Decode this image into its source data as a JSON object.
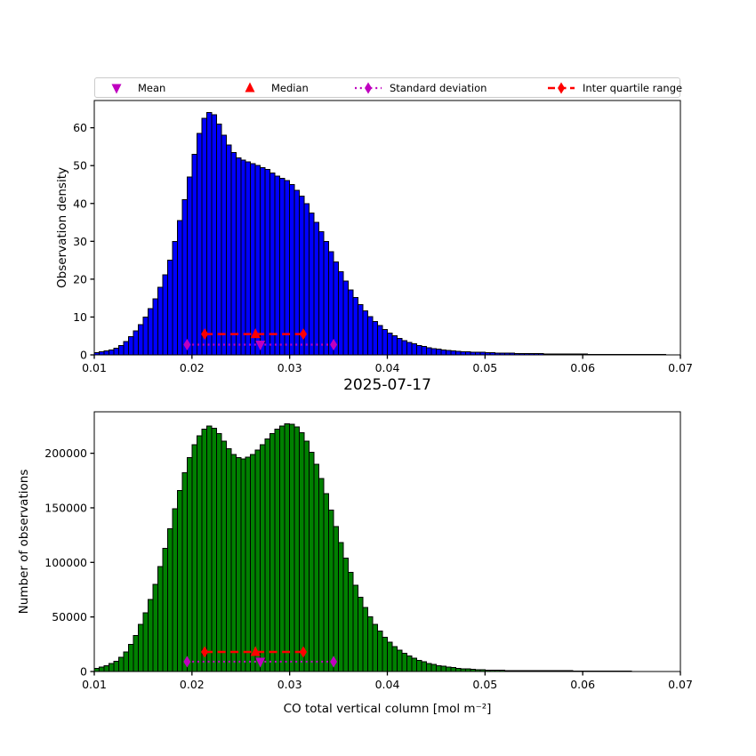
{
  "figure": {
    "background": "#ffffff"
  },
  "legend": {
    "items": [
      {
        "label": "Mean",
        "marker": "triangle-down",
        "color": "#BF00BF",
        "linestyle": "none"
      },
      {
        "label": "Median",
        "marker": "triangle-up",
        "color": "#FF0000",
        "linestyle": "none"
      },
      {
        "label": "Standard deviation",
        "marker": "diamond",
        "color": "#BF00BF",
        "linestyle": "dotted"
      },
      {
        "label": "Inter quartile range",
        "marker": "diamond",
        "color": "#FF0000",
        "linestyle": "dashed"
      }
    ]
  },
  "chart_data": [
    {
      "type": "bar",
      "subtype": "histogram",
      "title": "",
      "xlabel": "",
      "ylabel": "Observation density",
      "xlim": [
        0.01,
        0.07
      ],
      "ylim": [
        0,
        67.2
      ],
      "grid": false,
      "xticks": [
        0.01,
        0.02,
        0.03,
        0.04,
        0.05,
        0.06,
        0.07
      ],
      "xtick_labels": [
        "0.01",
        "0.02",
        "0.03",
        "0.04",
        "0.05",
        "0.06",
        "0.07"
      ],
      "yticks": [
        0,
        10,
        20,
        30,
        40,
        50,
        60
      ],
      "ytick_labels": [
        "0",
        "10",
        "20",
        "30",
        "40",
        "50",
        "60"
      ],
      "bar_color": "#0000FF",
      "edge_color": "#000000",
      "bin_start": 0.01,
      "bin_width": 0.0005,
      "values": [
        0.6,
        0.8,
        1.0,
        1.3,
        1.8,
        2.5,
        3.5,
        4.8,
        6.3,
        8.0,
        10.0,
        12.2,
        14.8,
        17.8,
        21.2,
        25.0,
        30.0,
        35.5,
        41.0,
        47.0,
        53.0,
        58.5,
        62.5,
        64.0,
        63.5,
        61.0,
        58.0,
        55.5,
        53.5,
        52.0,
        51.5,
        51.0,
        50.5,
        50.0,
        49.5,
        49.0,
        48.0,
        47.2,
        46.6,
        46.0,
        45.0,
        43.5,
        42.0,
        40.0,
        37.5,
        35.0,
        32.5,
        30.0,
        27.2,
        24.5,
        22.0,
        19.5,
        17.2,
        15.2,
        13.3,
        11.6,
        10.1,
        8.8,
        7.7,
        6.7,
        5.8,
        5.0,
        4.4,
        3.8,
        3.3,
        2.9,
        2.5,
        2.2,
        1.9,
        1.7,
        1.5,
        1.3,
        1.2,
        1.0,
        0.9,
        0.85,
        0.8,
        0.75,
        0.7,
        0.65,
        0.6,
        0.55,
        0.5,
        0.48,
        0.45,
        0.42,
        0.4,
        0.38,
        0.36,
        0.34,
        0.32,
        0.3,
        0.28,
        0.27,
        0.26,
        0.25,
        0.24,
        0.22,
        0.2,
        0.19,
        0.18,
        0.17,
        0.16,
        0.15,
        0.15,
        0.14,
        0.14,
        0.13,
        0.13,
        0.12,
        0.12,
        0.11,
        0.11,
        0.1,
        0.1,
        0.1,
        0.1
      ],
      "stats_markers": {
        "mean": {
          "x": 0.027,
          "y": 2.7,
          "color": "#BF00BF"
        },
        "median": {
          "x": 0.0265,
          "y": 5.5,
          "color": "#FF0000"
        },
        "std_range": {
          "x1": 0.0195,
          "x2": 0.0345,
          "y": 2.7,
          "color": "#BF00BF",
          "linestyle": "dotted"
        },
        "iqr_range": {
          "x1": 0.0213,
          "x2": 0.0314,
          "y": 5.5,
          "color": "#FF0000",
          "linestyle": "dashed"
        }
      }
    },
    {
      "type": "bar",
      "subtype": "histogram",
      "title": "2025-07-17",
      "xlabel": "CO total vertical column [mol m⁻²]",
      "ylabel": "Number of observations",
      "xlim": [
        0.01,
        0.07
      ],
      "ylim": [
        0,
        238000
      ],
      "grid": false,
      "xticks": [
        0.01,
        0.02,
        0.03,
        0.04,
        0.05,
        0.06,
        0.07
      ],
      "xtick_labels": [
        "0.01",
        "0.02",
        "0.03",
        "0.04",
        "0.05",
        "0.06",
        "0.07"
      ],
      "yticks": [
        0,
        50000,
        100000,
        150000,
        200000
      ],
      "ytick_labels": [
        "0",
        "50000",
        "100000",
        "150000",
        "200000"
      ],
      "bar_color": "#008000",
      "edge_color": "#000000",
      "bin_start": 0.01,
      "bin_width": 0.0005,
      "values": [
        3000,
        4200,
        5500,
        7200,
        9500,
        13000,
        18000,
        25000,
        33000,
        43000,
        54000,
        66000,
        80000,
        96000,
        113000,
        131000,
        149000,
        166000,
        182000,
        196000,
        208000,
        216000,
        222000,
        225000,
        223000,
        218000,
        211000,
        204000,
        199000,
        196000,
        195000,
        196500,
        199000,
        203000,
        208000,
        213000,
        218000,
        222000,
        225000,
        227000,
        226500,
        224000,
        219000,
        211000,
        201000,
        190000,
        177000,
        163000,
        148000,
        133000,
        118000,
        104000,
        91000,
        79000,
        68000,
        58500,
        50000,
        43000,
        37000,
        31500,
        27000,
        23000,
        19500,
        16600,
        14200,
        12100,
        10300,
        8800,
        7500,
        6400,
        5500,
        4700,
        4000,
        3500,
        3000,
        2600,
        2300,
        2000,
        1800,
        1600,
        1400,
        1300,
        1200,
        1100,
        1000,
        950,
        900,
        850,
        800,
        780,
        760,
        740,
        720,
        700,
        680,
        660,
        640,
        620,
        600,
        580,
        560,
        540,
        520,
        500,
        490,
        480,
        470,
        460,
        450,
        440
      ],
      "stats_markers": {
        "mean": {
          "x": 0.027,
          "y": 9000,
          "color": "#BF00BF"
        },
        "median": {
          "x": 0.0265,
          "y": 17900,
          "color": "#FF0000"
        },
        "std_range": {
          "x1": 0.0195,
          "x2": 0.0345,
          "y": 9000,
          "color": "#BF00BF",
          "linestyle": "dotted"
        },
        "iqr_range": {
          "x1": 0.0213,
          "x2": 0.0314,
          "y": 17900,
          "color": "#FF0000",
          "linestyle": "dashed"
        }
      }
    }
  ]
}
